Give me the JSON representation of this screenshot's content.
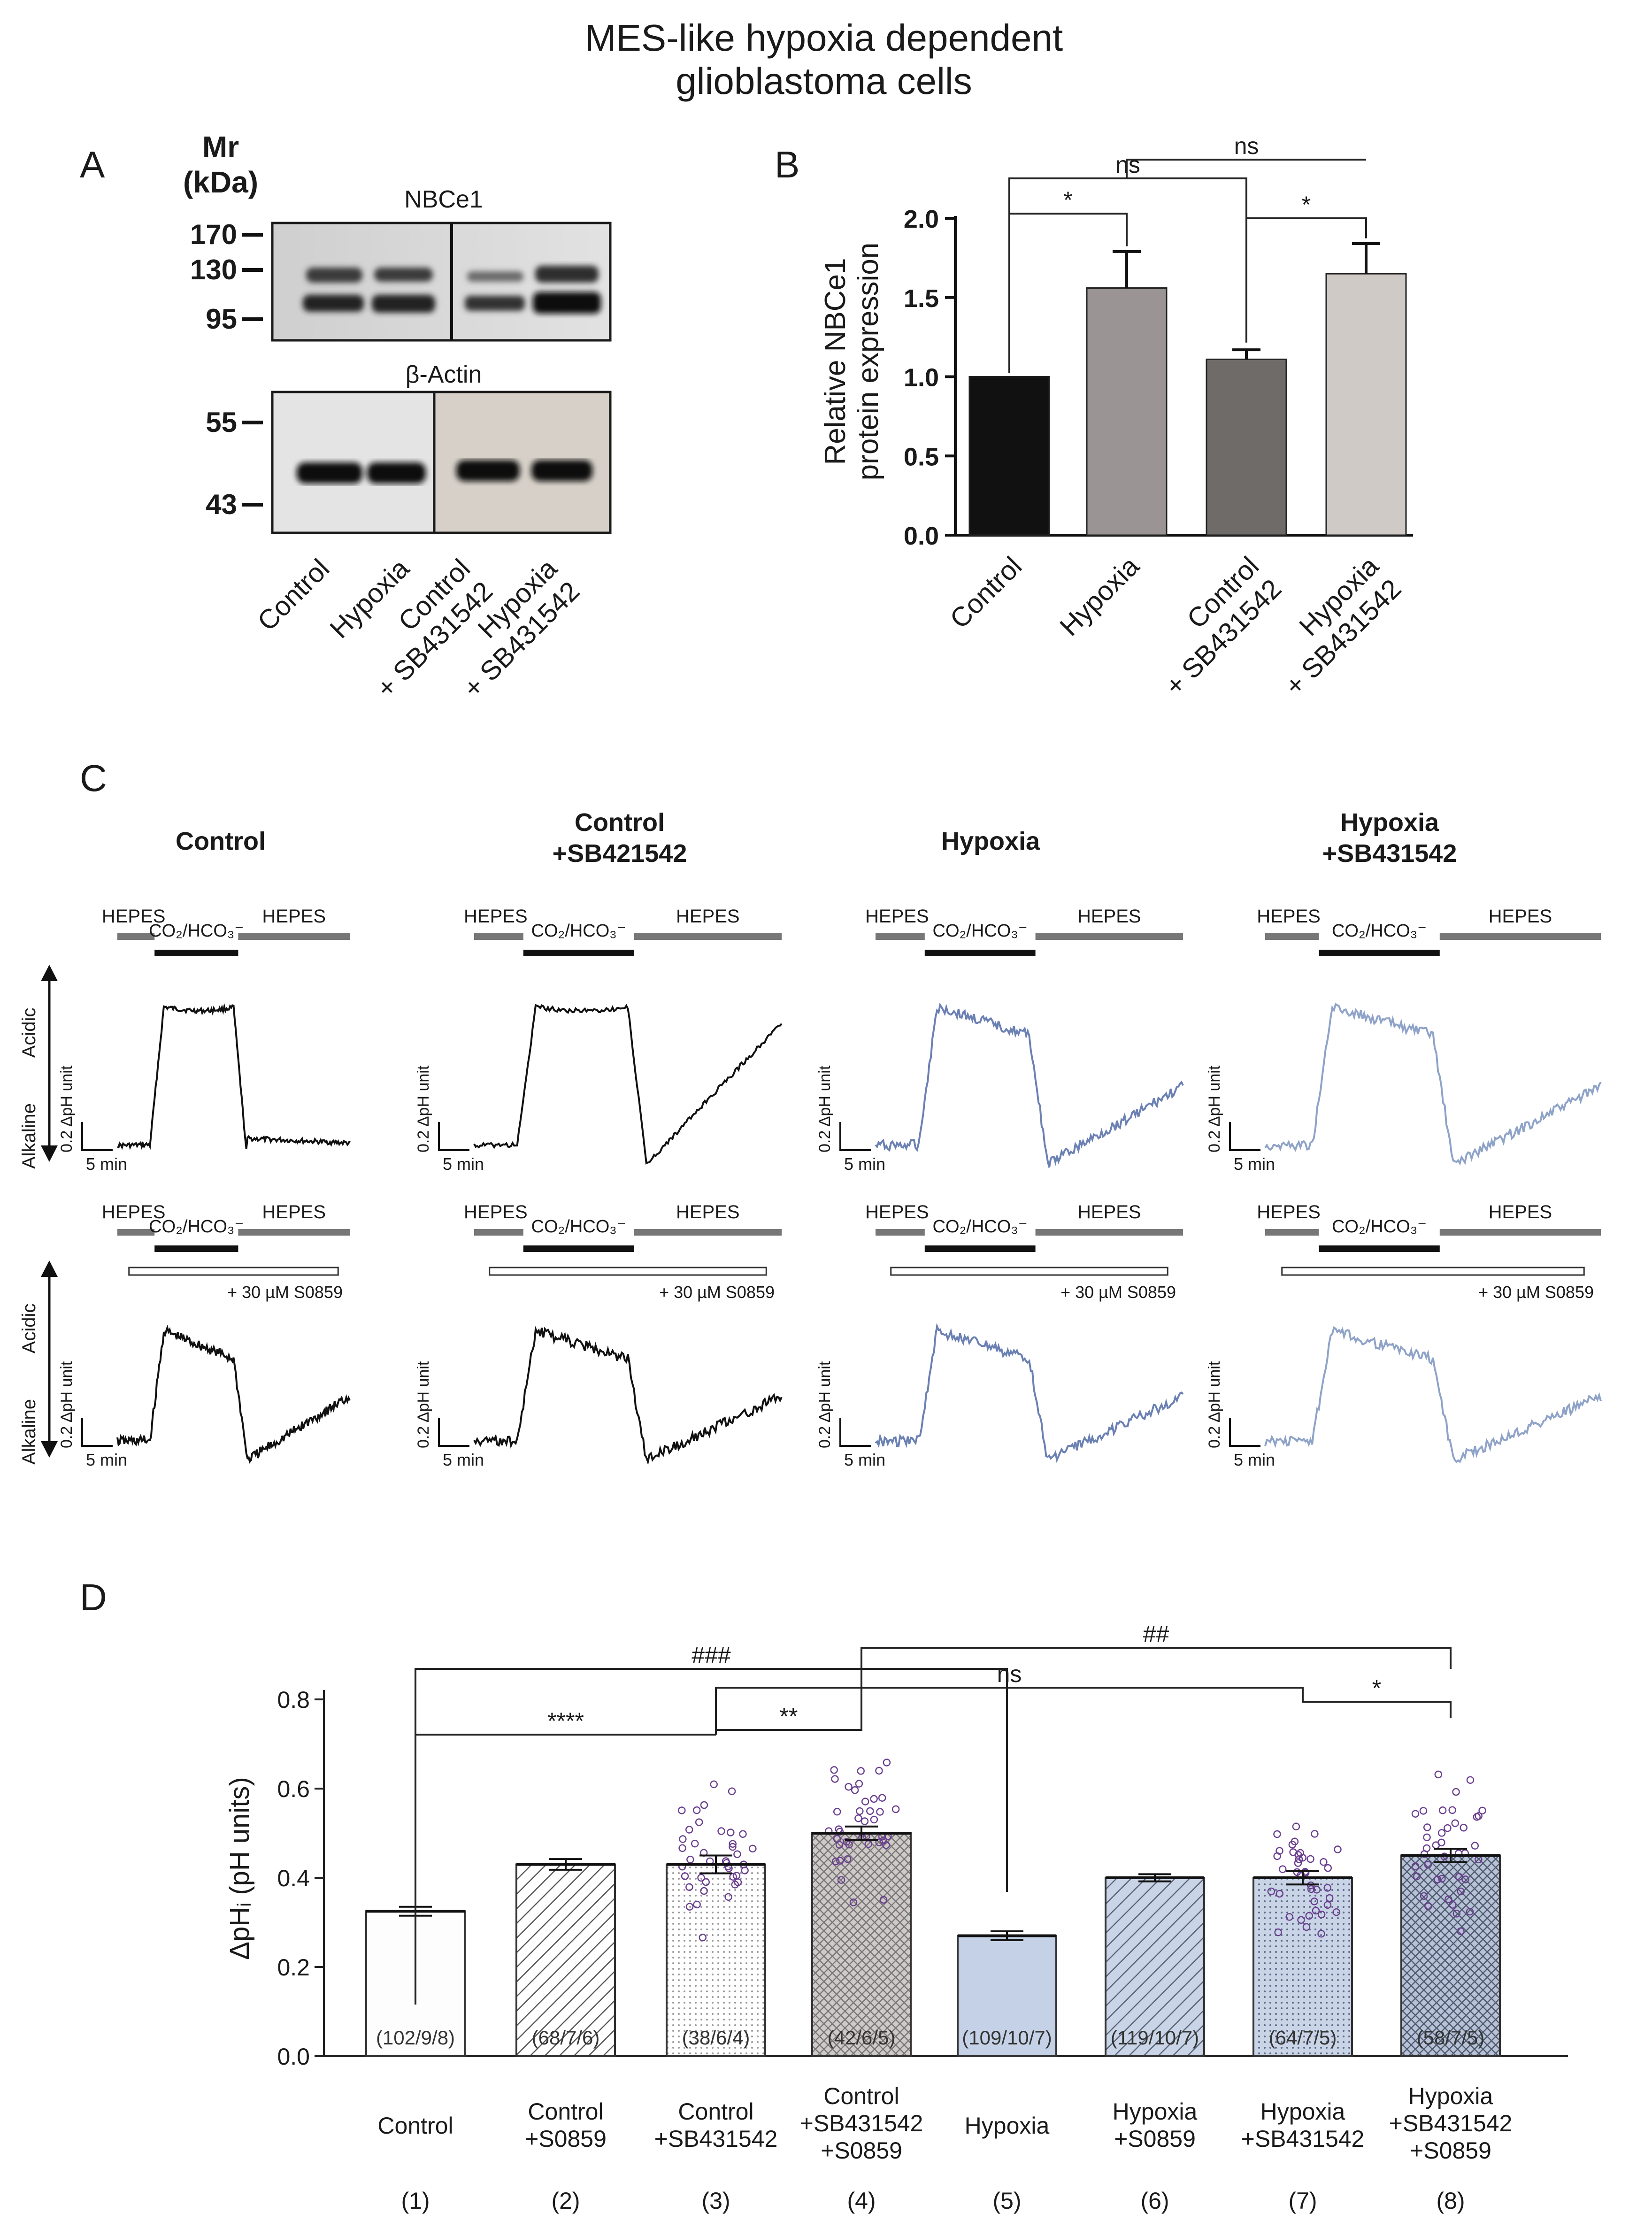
{
  "figure": {
    "title_line1": "MES-like hypoxia dependent",
    "title_line2": "glioblastoma cells"
  },
  "panel_a": {
    "letter": "A",
    "mr_label": "Mr",
    "kda_label": "(kDa)",
    "blot1_title": "NBCe1",
    "blot1_markers": [
      "170",
      "130",
      "95"
    ],
    "blot2_title": "β-Actin",
    "blot2_markers": [
      "55",
      "43"
    ],
    "lanes": [
      {
        "line1": "Control",
        "line2": ""
      },
      {
        "line1": "Hypoxia",
        "line2": ""
      },
      {
        "line1": "Control",
        "line2": "+ SB431542"
      },
      {
        "line1": "Hypoxia",
        "line2": "+ SB431542"
      }
    ]
  },
  "panel_c": {
    "letter": "C",
    "columns": [
      {
        "line1": "Control",
        "line2": "",
        "color": "#111111"
      },
      {
        "line1": "Control",
        "line2": "+SB421542",
        "color": "#111111"
      },
      {
        "line1": "Hypoxia",
        "line2": "",
        "color": "#6b80b3"
      },
      {
        "line1": "Hypoxia",
        "line2": "+SB431542",
        "color": "#8fa3c8"
      }
    ],
    "hepes": "HEPES",
    "co2": "CO₂/HCO₃⁻",
    "drug": "+ 30 µM S0859",
    "acidic": "Acidic",
    "alkaline": "Alkaline",
    "scale_y": "0.2 ΔpH unit",
    "scale_x": "5 min"
  },
  "chart_data": [
    {
      "id": "B",
      "letter": "B",
      "type": "bar",
      "title": "",
      "ylabel_line1": "Relative NBCe1",
      "ylabel_line2": "protein expression",
      "ylim": [
        0,
        2.0
      ],
      "yticks": [
        "0.0",
        "0.5",
        "1.0",
        "1.5",
        "2.0"
      ],
      "categories": [
        {
          "line1": "Control",
          "line2": ""
        },
        {
          "line1": "Hypoxia",
          "line2": ""
        },
        {
          "line1": "Control",
          "line2": "+ SB431542"
        },
        {
          "line1": "Hypoxia",
          "line2": "+ SB431542"
        }
      ],
      "values": [
        1.0,
        1.56,
        1.11,
        1.65
      ],
      "errors": [
        0,
        0.23,
        0.06,
        0.19
      ],
      "colors": [
        "#111111",
        "#9a9494",
        "#6f6b69",
        "#cfcac6"
      ],
      "significance": [
        {
          "from": 0,
          "to": 1,
          "label": "*"
        },
        {
          "from": 0,
          "to": 2,
          "label": "ns"
        },
        {
          "from": 1,
          "to": 3,
          "label": "ns"
        },
        {
          "from": 2,
          "to": 3,
          "label": "*"
        }
      ]
    },
    {
      "id": "D",
      "letter": "D",
      "type": "bar",
      "ylabel": "ΔpHᵢ (pH units)",
      "ylim": [
        0,
        0.8
      ],
      "yticks": [
        "0.0",
        "0.2",
        "0.4",
        "0.6",
        "0.8"
      ],
      "categories": [
        {
          "lines": [
            "Control"
          ],
          "index": "(1)"
        },
        {
          "lines": [
            "Control",
            "+S0859"
          ],
          "index": "(2)"
        },
        {
          "lines": [
            "Control",
            "+SB431542"
          ],
          "index": "(3)"
        },
        {
          "lines": [
            "Control",
            "+SB431542",
            "+S0859"
          ],
          "index": "(4)"
        },
        {
          "lines": [
            "Hypoxia"
          ],
          "index": "(5)"
        },
        {
          "lines": [
            "Hypoxia",
            "+S0859"
          ],
          "index": "(6)"
        },
        {
          "lines": [
            "Hypoxia",
            "+SB431542"
          ],
          "index": "(7)"
        },
        {
          "lines": [
            "Hypoxia",
            "+SB431542",
            "+S0859"
          ],
          "index": "(8)"
        }
      ],
      "values": [
        0.325,
        0.43,
        0.43,
        0.5,
        0.27,
        0.4,
        0.4,
        0.45
      ],
      "errors": [
        0.01,
        0.012,
        0.02,
        0.015,
        0.01,
        0.008,
        0.015,
        0.015
      ],
      "n_labels": [
        "(102/9/8)",
        "(68/7/6)",
        "(38/6/4)",
        "(42/6/5)",
        "(109/10/7)",
        "(119/10/7)",
        "(64/7/5)",
        "(58/7/5)"
      ],
      "show_points": [
        false,
        false,
        true,
        true,
        false,
        false,
        true,
        true
      ],
      "significance": [
        {
          "from": 0,
          "to": 2,
          "label": "****"
        },
        {
          "from": 2,
          "to": 3,
          "label": "**"
        },
        {
          "from": 0,
          "to": 4,
          "label": "###"
        },
        {
          "from": 3,
          "to": 7,
          "label": "##"
        },
        {
          "from": 2,
          "to": 6,
          "label": "ns"
        },
        {
          "from": 6,
          "to": 7,
          "label": "*"
        }
      ]
    }
  ]
}
